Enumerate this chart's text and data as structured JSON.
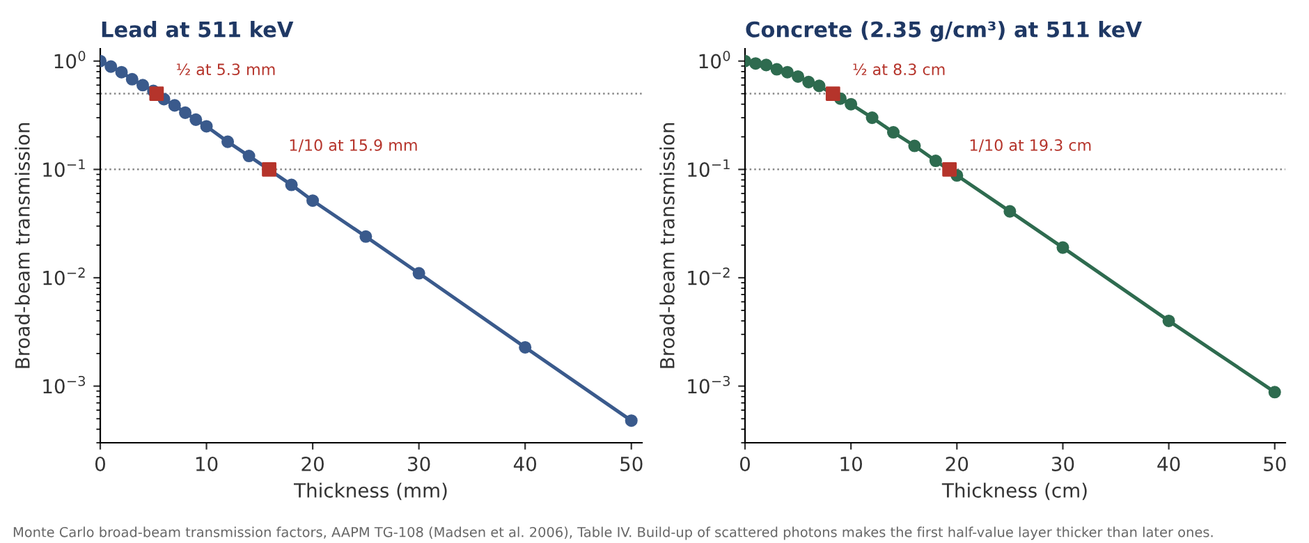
{
  "chart_data": [
    {
      "type": "line",
      "title": "Lead at 511 keV",
      "xlabel": "Thickness (mm)",
      "ylabel": "Broad-beam transmission",
      "log": "y",
      "grid": false,
      "marker": "circle",
      "line_style": "solid",
      "xlim": [
        0,
        51
      ],
      "xticks": [
        0,
        10,
        20,
        30,
        40,
        50
      ],
      "ylim": [
        0.0003,
        1.3
      ],
      "yticks": [
        {
          "value": 0.001,
          "label": "10$^{−3}$"
        },
        {
          "value": 0.01,
          "label": "10$^{−2}$"
        },
        {
          "value": 0.1,
          "label": "10$^{−1}$"
        },
        {
          "value": 1,
          "label": "10$^{0}$"
        }
      ],
      "series": [
        {
          "color": "#3a5a8c",
          "x": [
            0,
            1,
            2,
            3,
            4,
            5,
            6,
            7,
            8,
            9,
            10,
            12,
            14,
            18,
            20,
            25,
            30,
            40,
            50
          ],
          "values": [
            1.0,
            0.89,
            0.79,
            0.68,
            0.6,
            0.53,
            0.445,
            0.39,
            0.334,
            0.288,
            0.25,
            0.18,
            0.133,
            0.072,
            0.0515,
            0.024,
            0.011,
            0.00228,
            0.00048
          ]
        },
        {
          "type": "scatter",
          "marker": "square",
          "color": "#b5342b",
          "x": [
            5.3,
            15.9
          ],
          "values": [
            0.5,
            0.1
          ]
        }
      ],
      "ref_lines": [
        {
          "axis": "y",
          "value": 0.5,
          "color": "#888888",
          "line_style": "dotted"
        },
        {
          "axis": "y",
          "value": 0.1,
          "color": "#888888",
          "line_style": "dotted"
        }
      ],
      "annotations": [
        {
          "text": "½ at 5.3 mm",
          "x": 5.3,
          "y": 0.5
        },
        {
          "text": "1/10 at 15.9 mm",
          "x": 15.9,
          "y": 0.1
        }
      ]
    },
    {
      "type": "line",
      "title": "Concrete (2.35 g/cm³) at 511 keV",
      "xlabel": "Thickness (cm)",
      "ylabel": "Broad-beam transmission",
      "log": "y",
      "grid": false,
      "marker": "circle",
      "line_style": "solid",
      "xlim": [
        0,
        51
      ],
      "xticks": [
        0,
        10,
        20,
        30,
        40,
        50
      ],
      "ylim": [
        0.0003,
        1.3
      ],
      "yticks": [
        {
          "value": 0.001,
          "label": "10$^{−3}$"
        },
        {
          "value": 0.01,
          "label": "10$^{−2}$"
        },
        {
          "value": 0.1,
          "label": "10$^{−1}$"
        },
        {
          "value": 1,
          "label": "10$^{0}$"
        }
      ],
      "series": [
        {
          "color": "#2e6b4f",
          "x": [
            0,
            1,
            2,
            3,
            4,
            5,
            6,
            7,
            9,
            10,
            12,
            14,
            16,
            18,
            20,
            25,
            30,
            40,
            50
          ],
          "values": [
            1.0,
            0.95,
            0.92,
            0.84,
            0.79,
            0.72,
            0.64,
            0.59,
            0.45,
            0.4,
            0.3,
            0.22,
            0.165,
            0.12,
            0.088,
            0.041,
            0.019,
            0.004,
            0.00088
          ]
        },
        {
          "type": "scatter",
          "marker": "square",
          "color": "#b5342b",
          "x": [
            8.3,
            19.3
          ],
          "values": [
            0.5,
            0.1
          ]
        }
      ],
      "ref_lines": [
        {
          "axis": "y",
          "value": 0.5,
          "color": "#888888",
          "line_style": "dotted"
        },
        {
          "axis": "y",
          "value": 0.1,
          "color": "#888888",
          "line_style": "dotted"
        }
      ],
      "annotations": [
        {
          "text": "½ at 8.3 cm",
          "x": 8.3,
          "y": 0.5
        },
        {
          "text": "1/10 at 19.3 cm",
          "x": 19.3,
          "y": 0.1
        },
        "Monte Carlo broad-beam transmission factors, AAPM TG-108 (Madsen et al. 2006), Table IV. Build-up of scattered photons makes the first half-value layer thicker than later ones."
      ]
    }
  ]
}
